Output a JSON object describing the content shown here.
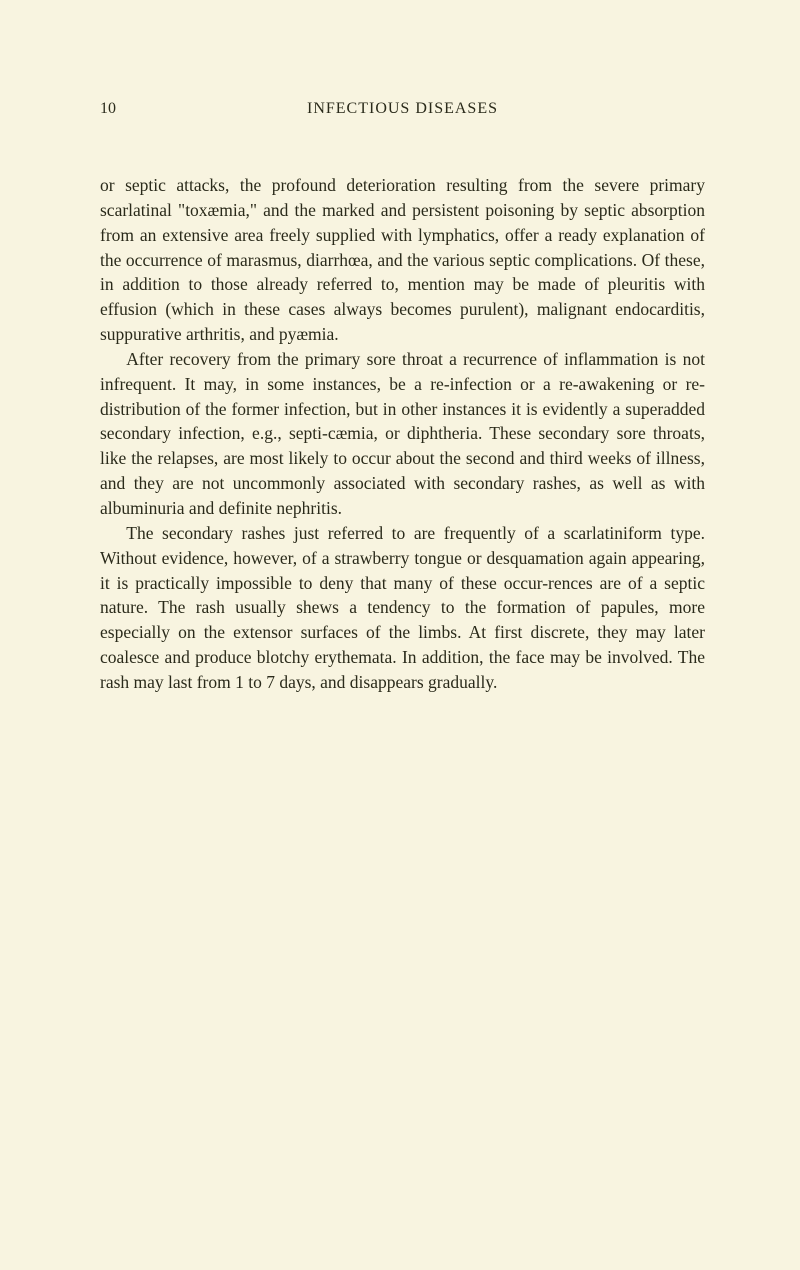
{
  "page": {
    "number": "10",
    "header": "INFECTIOUS DISEASES",
    "paragraphs": [
      "or septic attacks, the profound deterioration resulting from the severe primary scarlatinal \"toxæmia,\" and the marked and persistent poisoning by septic absorption from an extensive area freely supplied with lymphatics, offer a ready explanation of the occurrence of marasmus, diarrhœa, and the various septic complications. Of these, in addition to those already referred to, mention may be made of pleuritis with effusion (which in these cases always becomes purulent), malignant endocarditis, suppurative arthritis, and pyæmia.",
      "After recovery from the primary sore throat a recurrence of inflammation is not infrequent. It may, in some instances, be a re-infection or a re-awakening or re-distribution of the former infection, but in other instances it is evidently a superadded secondary infection, e.g., septi-cæmia, or diphtheria. These secondary sore throats, like the relapses, are most likely to occur about the second and third weeks of illness, and they are not uncommonly associated with secondary rashes, as well as with albuminuria and definite nephritis.",
      "The secondary rashes just referred to are frequently of a scarlatiniform type. Without evidence, however, of a strawberry tongue or desquamation again appearing, it is practically impossible to deny that many of these occur-rences are of a septic nature. The rash usually shews a tendency to the formation of papules, more especially on the extensor surfaces of the limbs. At first discrete, they may later coalesce and produce blotchy erythemata. In addition, the face may be involved. The rash may last from 1 to 7 days, and disappears gradually."
    ]
  },
  "colors": {
    "background": "#f8f4e0",
    "text": "#2a2a1a"
  },
  "typography": {
    "body_fontsize": 17.5,
    "header_fontsize": 16,
    "line_height": 1.42,
    "font_family": "Georgia, Times New Roman, serif"
  }
}
